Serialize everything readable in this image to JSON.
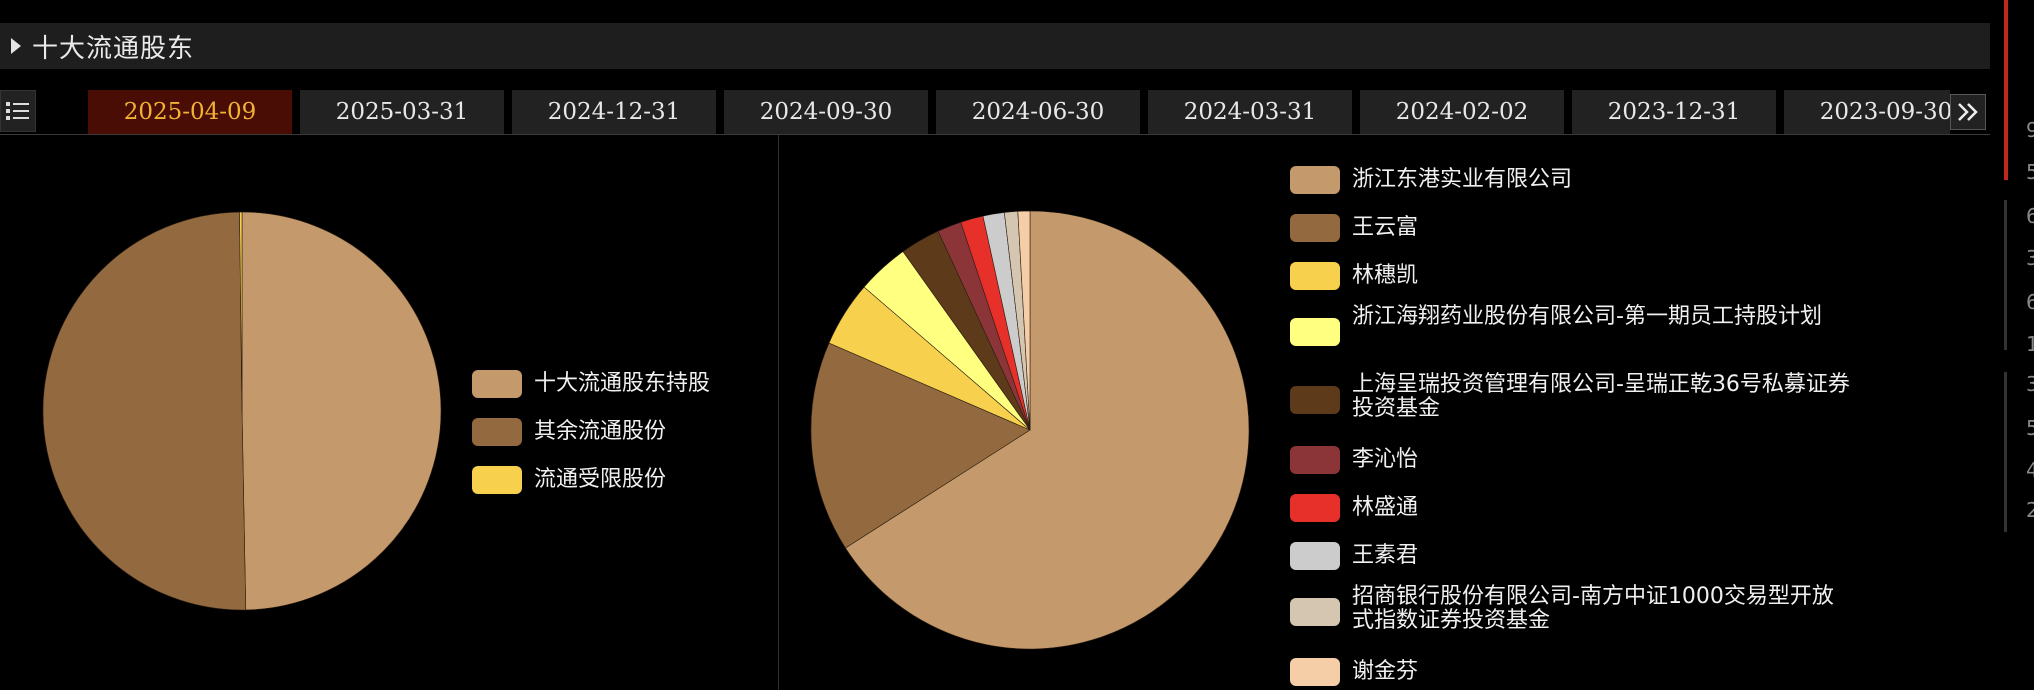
{
  "header": {
    "title": "十大流通股东",
    "toggle_icon": "triangle-right-icon"
  },
  "tabbar": {
    "list_icon": "list-icon",
    "more_icon": "double-chevron-right-icon",
    "tabs": [
      {
        "label": "2025-04-09",
        "active": true
      },
      {
        "label": "2025-03-31",
        "active": false
      },
      {
        "label": "2024-12-31",
        "active": false
      },
      {
        "label": "2024-09-30",
        "active": false
      },
      {
        "label": "2024-06-30",
        "active": false
      },
      {
        "label": "2024-03-31",
        "active": false
      },
      {
        "label": "2024-02-02",
        "active": false
      },
      {
        "label": "2023-12-31",
        "active": false
      },
      {
        "label": "2023-09-30",
        "active": false
      }
    ]
  },
  "chart_data": [
    {
      "type": "pie",
      "legend": "right",
      "labels": [
        "十大流通股东持股",
        "其余流通股份",
        "流通受限股份"
      ],
      "values": [
        49.7,
        50.1,
        0.2
      ],
      "colors": [
        "#c4996b",
        "#936a3f",
        "#f7d04d"
      ]
    },
    {
      "type": "pie",
      "legend": "right",
      "labels": [
        "浙江东港实业有限公司",
        "王云富",
        "林穗凯",
        "浙江海翔药业股份有限公司-第一期员工持股计划",
        "上海呈瑞投资管理有限公司-呈瑞正乾36号私募证券投资基金",
        "李沁怡",
        "林盛通",
        "王素君",
        "招商银行股份有限公司-南方中证1000交易型开放式指数证券投资基金",
        "谢金芬"
      ],
      "values": [
        67.0,
        15.8,
        4.9,
        3.9,
        3.0,
        1.8,
        1.7,
        1.6,
        1.0,
        0.9
      ],
      "colors": [
        "#c4996b",
        "#936a3f",
        "#f7d04d",
        "#ffff80",
        "#5d3a1a",
        "#8c3538",
        "#e8302a",
        "#cccccc",
        "#d4c6b0",
        "#f5cda6"
      ]
    }
  ],
  "edge_digits": [
    "9",
    "5",
    "6",
    "3",
    "6",
    "1",
    "3",
    "5",
    "4",
    "2"
  ]
}
